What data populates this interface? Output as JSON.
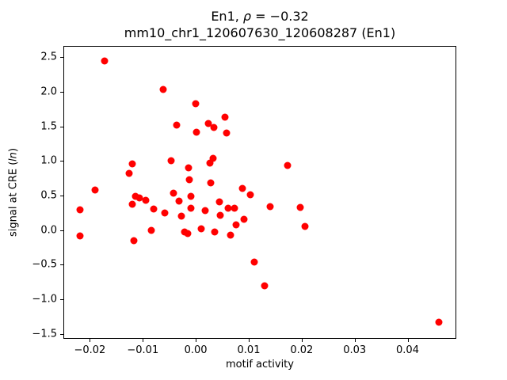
{
  "figure": {
    "background": "#ffffff",
    "text_color": "#000000"
  },
  "chart_data": {
    "type": "scatter",
    "title_line1": {
      "prefix": "En1, ",
      "rho": "ρ",
      "rest": " = −0.32"
    },
    "title_line2": "mm10_chr1_120607630_120608287 (En1)",
    "xlabel": "motif activity",
    "ylabel": {
      "prefix": "signal at CRE (",
      "italic": "ln",
      "suffix": ")"
    },
    "marker_color": "#ff0000",
    "grid": false,
    "legend": null,
    "xlim": [
      -0.025,
      0.0492
    ],
    "ylim": [
      -1.57,
      2.66
    ],
    "xticks": [
      {
        "v": -0.02,
        "label": "−0.02"
      },
      {
        "v": -0.01,
        "label": "−0.01"
      },
      {
        "v": 0.0,
        "label": "0.00"
      },
      {
        "v": 0.01,
        "label": "0.01"
      },
      {
        "v": 0.02,
        "label": "0.02"
      },
      {
        "v": 0.03,
        "label": "0.03"
      },
      {
        "v": 0.04,
        "label": "0.04"
      }
    ],
    "yticks": [
      {
        "v": -1.5,
        "label": "−1.5"
      },
      {
        "v": -1.0,
        "label": "−1.0"
      },
      {
        "v": -0.5,
        "label": "−0.5"
      },
      {
        "v": 0.0,
        "label": "0.0"
      },
      {
        "v": 0.5,
        "label": "0.5"
      },
      {
        "v": 1.0,
        "label": "1.0"
      },
      {
        "v": 1.5,
        "label": "1.5"
      },
      {
        "v": 2.0,
        "label": "2.0"
      },
      {
        "v": 2.5,
        "label": "2.5"
      }
    ],
    "points": [
      [
        -0.022,
        0.3
      ],
      [
        -0.022,
        -0.07
      ],
      [
        -0.0192,
        0.59
      ],
      [
        -0.0174,
        2.45
      ],
      [
        -0.0127,
        0.83
      ],
      [
        -0.0121,
        0.97
      ],
      [
        -0.0122,
        0.39
      ],
      [
        -0.0115,
        0.5
      ],
      [
        -0.0108,
        0.48
      ],
      [
        -0.0118,
        -0.14
      ],
      [
        -0.0096,
        0.44
      ],
      [
        -0.0085,
        0.01
      ],
      [
        -0.0081,
        0.32
      ],
      [
        -0.0063,
        2.04
      ],
      [
        -0.006,
        0.26
      ],
      [
        -0.0048,
        1.01
      ],
      [
        -0.0038,
        1.53
      ],
      [
        -0.0044,
        0.55
      ],
      [
        -0.0033,
        0.43
      ],
      [
        -0.0029,
        0.21
      ],
      [
        -0.0023,
        -0.02
      ],
      [
        -0.0017,
        -0.04
      ],
      [
        -0.0015,
        0.91
      ],
      [
        -0.0014,
        0.74
      ],
      [
        -0.0011,
        0.5
      ],
      [
        -0.001,
        0.33
      ],
      [
        -0.0002,
        1.84
      ],
      [
        0.0,
        1.43
      ],
      [
        0.0009,
        0.03
      ],
      [
        0.0016,
        0.29
      ],
      [
        0.0022,
        1.55
      ],
      [
        0.0032,
        1.5
      ],
      [
        0.0025,
        0.98
      ],
      [
        0.0031,
        1.05
      ],
      [
        0.0027,
        0.69
      ],
      [
        0.0034,
        -0.02
      ],
      [
        0.0043,
        0.42
      ],
      [
        0.0045,
        0.23
      ],
      [
        0.0054,
        1.64
      ],
      [
        0.0057,
        1.41
      ],
      [
        0.006,
        0.33
      ],
      [
        0.0064,
        -0.06
      ],
      [
        0.0072,
        0.33
      ],
      [
        0.0075,
        0.09
      ],
      [
        0.0087,
        0.61
      ],
      [
        0.009,
        0.17
      ],
      [
        0.0102,
        0.52
      ],
      [
        0.0109,
        -0.45
      ],
      [
        0.0128,
        -0.79
      ],
      [
        0.0139,
        0.35
      ],
      [
        0.0172,
        0.95
      ],
      [
        0.0196,
        0.34
      ],
      [
        0.0205,
        0.07
      ],
      [
        0.0458,
        -1.32
      ]
    ]
  }
}
